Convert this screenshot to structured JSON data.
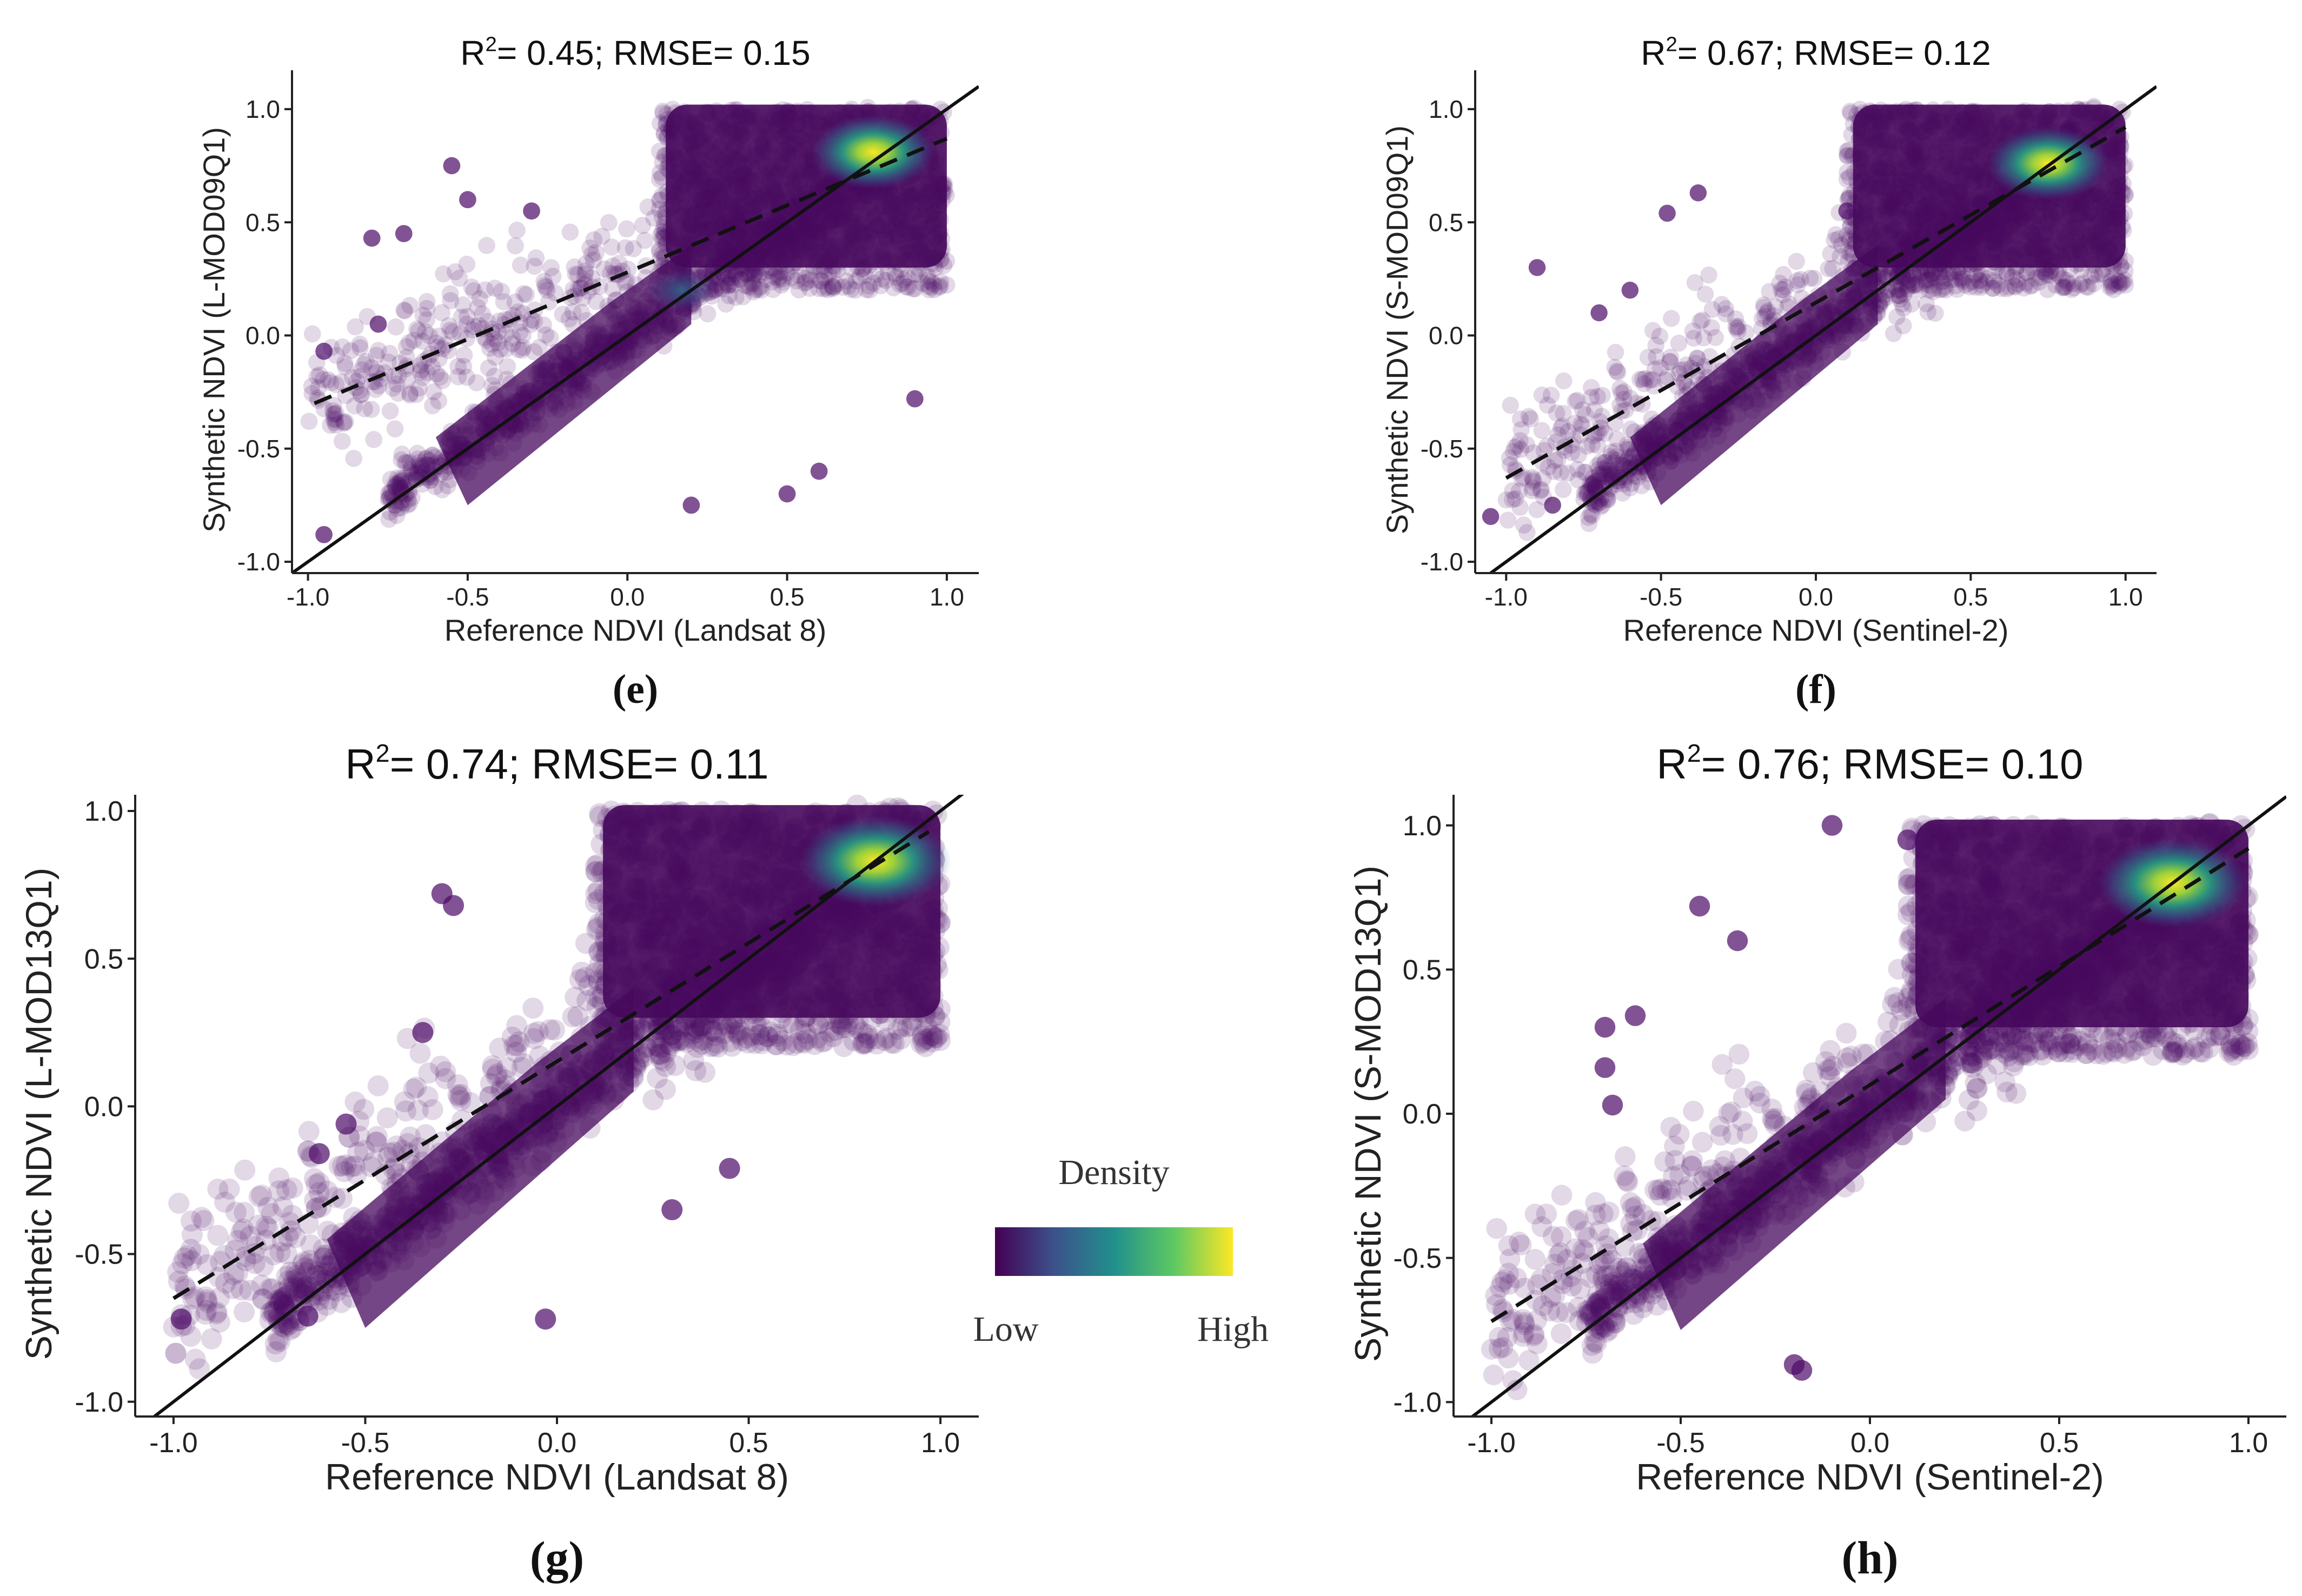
{
  "chart_data": [
    {
      "panel": "(e)",
      "type": "scatter",
      "title_main": "R",
      "title_sup": "2",
      "title_rest": "= 0.45; RMSE= 0.15",
      "xlabel": "Reference NDVI (Landsat 8)",
      "ylabel": "Synthetic NDVI (L-MOD09Q1)",
      "xlim": [
        -1.05,
        1.1
      ],
      "ylim": [
        -1.05,
        1.1
      ],
      "xticks": [
        "-1.0",
        "-0.5",
        "0.0",
        "0.5",
        "1.0"
      ],
      "yticks": [
        "-1.0",
        "-0.5",
        "0.0",
        "0.5",
        "1.0"
      ],
      "identity_line": {
        "x": [
          -1.05,
          1.1
        ],
        "y": [
          -1.05,
          1.1
        ]
      },
      "fit_line": {
        "x": [
          -0.98,
          1.0
        ],
        "y": [
          -0.3,
          0.87
        ]
      },
      "hotspots": [
        {
          "x": 0.77,
          "y": 0.81,
          "level": "high"
        },
        {
          "x": 0.17,
          "y": 0.2,
          "level": "medium"
        }
      ],
      "outliers": [
        {
          "x": -0.8,
          "y": 0.43
        },
        {
          "x": -0.78,
          "y": 0.05
        },
        {
          "x": -0.7,
          "y": 0.45
        },
        {
          "x": -0.95,
          "y": -0.07
        },
        {
          "x": -0.95,
          "y": -0.88
        },
        {
          "x": 0.5,
          "y": -0.7
        },
        {
          "x": 0.9,
          "y": -0.28
        },
        {
          "x": -0.55,
          "y": 0.75
        },
        {
          "x": -0.5,
          "y": 0.6
        },
        {
          "x": 0.6,
          "y": -0.6
        },
        {
          "x": -0.3,
          "y": 0.55
        },
        {
          "x": 0.2,
          "y": -0.75
        }
      ]
    },
    {
      "panel": "(f)",
      "type": "scatter",
      "title_main": "R",
      "title_sup": "2",
      "title_rest": "= 0.67; RMSE= 0.12",
      "xlabel": "Reference NDVI (Sentinel-2)",
      "ylabel": "Synthetic NDVI (S-MOD09Q1)",
      "xlim": [
        -1.1,
        1.1
      ],
      "ylim": [
        -1.05,
        1.1
      ],
      "xticks": [
        "-1.0",
        "-0.5",
        "0.0",
        "0.5",
        "1.0"
      ],
      "yticks": [
        "-1.0",
        "-0.5",
        "0.0",
        "0.5",
        "1.0"
      ],
      "identity_line": {
        "x": [
          -1.1,
          1.1
        ],
        "y": [
          -1.1,
          1.1
        ]
      },
      "fit_line": {
        "x": [
          -1.0,
          1.0
        ],
        "y": [
          -0.63,
          0.92
        ]
      },
      "hotspots": [
        {
          "x": 0.75,
          "y": 0.76,
          "level": "high"
        }
      ],
      "outliers": [
        {
          "x": -0.38,
          "y": 0.63
        },
        {
          "x": -0.48,
          "y": 0.54
        },
        {
          "x": -0.9,
          "y": 0.3
        },
        {
          "x": -0.7,
          "y": 0.1
        },
        {
          "x": -1.05,
          "y": -0.8
        },
        {
          "x": -0.85,
          "y": -0.75
        },
        {
          "x": 0.1,
          "y": 0.55
        },
        {
          "x": -0.6,
          "y": 0.2
        }
      ]
    },
    {
      "panel": "(g)",
      "type": "scatter",
      "title_main": "R",
      "title_sup": "2",
      "title_rest": "= 0.74; RMSE= 0.11",
      "xlabel": "Reference NDVI (Landsat 8)",
      "ylabel": "Synthetic NDVI (L-MOD13Q1)",
      "xlim": [
        -1.1,
        1.1
      ],
      "ylim": [
        -1.05,
        1.0
      ],
      "xticks": [
        "-1.0",
        "-0.5",
        "0.0",
        "0.5",
        "1.0"
      ],
      "yticks": [
        "-1.0",
        "-0.5",
        "0.0",
        "0.5",
        "1.0"
      ],
      "identity_line": {
        "x": [
          -1.1,
          1.1
        ],
        "y": [
          -1.1,
          1.1
        ]
      },
      "fit_line": {
        "x": [
          -1.0,
          0.97
        ],
        "y": [
          -0.65,
          0.93
        ]
      },
      "hotspots": [
        {
          "x": 0.83,
          "y": 0.83,
          "level": "high"
        }
      ],
      "outliers": [
        {
          "x": -0.3,
          "y": 0.72
        },
        {
          "x": -0.27,
          "y": 0.68
        },
        {
          "x": -0.35,
          "y": 0.25
        },
        {
          "x": -0.62,
          "y": -0.16
        },
        {
          "x": -0.55,
          "y": -0.06
        },
        {
          "x": 0.45,
          "y": -0.21
        },
        {
          "x": -0.03,
          "y": -0.72
        },
        {
          "x": -0.98,
          "y": -0.72
        },
        {
          "x": 0.3,
          "y": -0.35
        },
        {
          "x": -0.65,
          "y": -0.71
        }
      ]
    },
    {
      "panel": "(h)",
      "type": "scatter",
      "title_main": "R",
      "title_sup": "2",
      "title_rest": "= 0.76; RMSE= 0.10",
      "xlabel": "Reference NDVI (Sentinel-2)",
      "ylabel": "Synthetic NDVI (S-MOD13Q1)",
      "xlim": [
        -1.1,
        1.1
      ],
      "ylim": [
        -1.05,
        1.05
      ],
      "xticks": [
        "-1.0",
        "-0.5",
        "0.0",
        "0.5",
        "1.0"
      ],
      "yticks": [
        "-1.0",
        "-0.5",
        "0.0",
        "0.5",
        "1.0"
      ],
      "identity_line": {
        "x": [
          -1.1,
          1.1
        ],
        "y": [
          -1.1,
          1.1
        ]
      },
      "fit_line": {
        "x": [
          -1.0,
          1.0
        ],
        "y": [
          -0.72,
          0.92
        ]
      },
      "hotspots": [
        {
          "x": 0.8,
          "y": 0.8,
          "level": "high"
        }
      ],
      "outliers": [
        {
          "x": -0.7,
          "y": 0.3
        },
        {
          "x": -0.62,
          "y": 0.34
        },
        {
          "x": -0.7,
          "y": 0.16
        },
        {
          "x": -0.68,
          "y": 0.03
        },
        {
          "x": -0.2,
          "y": -0.87
        },
        {
          "x": -0.18,
          "y": -0.89
        },
        {
          "x": -0.45,
          "y": 0.72
        },
        {
          "x": -0.35,
          "y": 0.6
        },
        {
          "x": -0.1,
          "y": 1.0
        },
        {
          "x": 0.1,
          "y": 0.95
        }
      ]
    }
  ],
  "legend": {
    "title": "Density",
    "low": "Low",
    "high": "High",
    "colors": [
      "#440154",
      "#3b528b",
      "#21908c",
      "#5dc863",
      "#fde725"
    ]
  },
  "style": {
    "point_color": "#4b0a66",
    "line_color": "#111111"
  }
}
